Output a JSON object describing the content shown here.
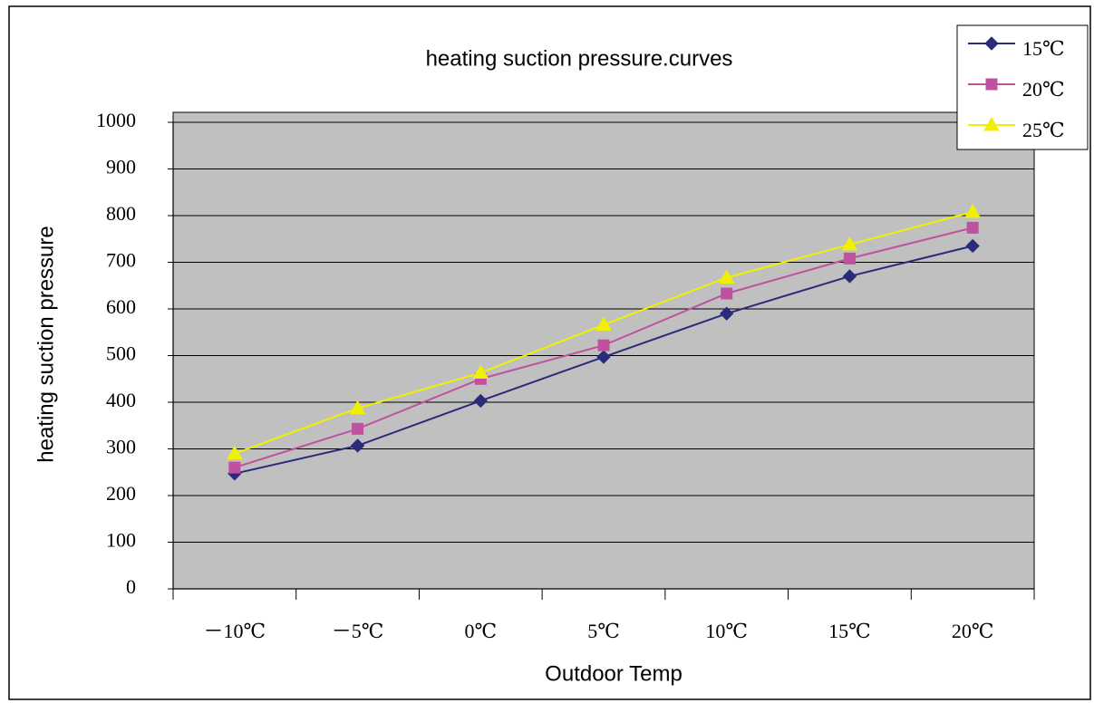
{
  "chart_data": {
    "type": "line",
    "title": "heating suction pressure.curves",
    "x_label": "Outdoor Temp",
    "y_label": "heating suction pressure",
    "categories": [
      "－10℃",
      "－5℃",
      "0℃",
      "5℃",
      "10℃",
      "15℃",
      "20℃"
    ],
    "series": [
      {
        "name": "15℃",
        "color": "#2b2b7c",
        "marker": "diamond",
        "values": [
          247,
          307,
          403,
          497,
          590,
          670,
          735
        ]
      },
      {
        "name": "20℃",
        "color": "#c050a0",
        "marker": "square",
        "values": [
          260,
          343,
          450,
          522,
          633,
          708,
          774
        ]
      },
      {
        "name": "25℃",
        "color": "#f0f000",
        "marker": "triangle",
        "values": [
          290,
          387,
          463,
          566,
          667,
          738,
          808
        ]
      }
    ],
    "ylim": [
      0,
      1000
    ],
    "yticks": [
      0,
      100,
      200,
      300,
      400,
      500,
      600,
      700,
      800,
      900,
      1000
    ],
    "grid": true,
    "legend": "top-right",
    "plot_background": "#c0c0c0"
  }
}
